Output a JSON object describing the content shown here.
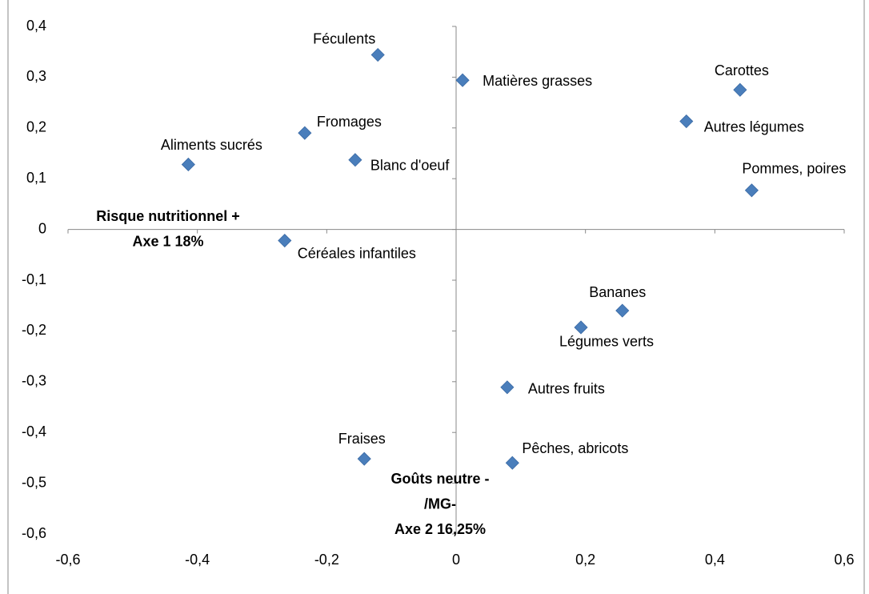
{
  "chart_data": {
    "type": "scatter",
    "labels": [
      "Féculents",
      "Matières grasses",
      "Carottes",
      "Autres légumes",
      "Fromages",
      "Blanc d'oeuf",
      "Aliments sucrés",
      "Pommes, poires",
      "Céréales infantiles",
      "Bananes",
      "Légumes verts",
      "Autres fruits",
      "Fraises",
      "Pêches, abricots"
    ],
    "x": [
      -0.121,
      0.01,
      0.439,
      0.356,
      -0.234,
      -0.156,
      -0.414,
      0.457,
      -0.265,
      0.257,
      0.193,
      0.079,
      -0.142,
      0.087
    ],
    "values": [
      0.344,
      0.294,
      0.275,
      0.213,
      0.19,
      0.137,
      0.128,
      0.077,
      -0.022,
      -0.16,
      -0.193,
      -0.311,
      -0.452,
      -0.46
    ],
    "color": "#4a7ebb",
    "xlim": [
      -0.6,
      0.6
    ],
    "xticks": [
      {
        "value": -0.6,
        "label": "-0,6"
      },
      {
        "value": -0.4,
        "label": "-0,4"
      },
      {
        "value": -0.2,
        "label": "-0,2"
      },
      0,
      {
        "value": 0.2,
        "label": "0,2"
      },
      {
        "value": 0.4,
        "label": "0,4"
      },
      {
        "value": 0.6,
        "label": "0,6"
      }
    ],
    "ylim": [
      -0.6,
      0.4
    ],
    "yticks": [
      {
        "value": -0.6,
        "label": "-0,6"
      },
      {
        "value": -0.5,
        "label": "-0,5"
      },
      {
        "value": -0.4,
        "label": "-0,4"
      },
      {
        "value": -0.3,
        "label": "-0,3"
      },
      {
        "value": -0.2,
        "label": "-0,2"
      },
      {
        "value": -0.1,
        "label": "-0,1"
      },
      0,
      {
        "value": 0.1,
        "label": "0,1"
      },
      {
        "value": 0.2,
        "label": "0,2"
      },
      {
        "value": 0.3,
        "label": "0,3"
      },
      {
        "value": 0.4,
        "label": "0,4"
      }
    ],
    "annotations": [
      [
        "Risque nutritionnel +",
        "Axe 1 18%"
      ],
      [
        "Goûts neutre -",
        "/MG-",
        "Axe 2 16,25%"
      ]
    ]
  }
}
